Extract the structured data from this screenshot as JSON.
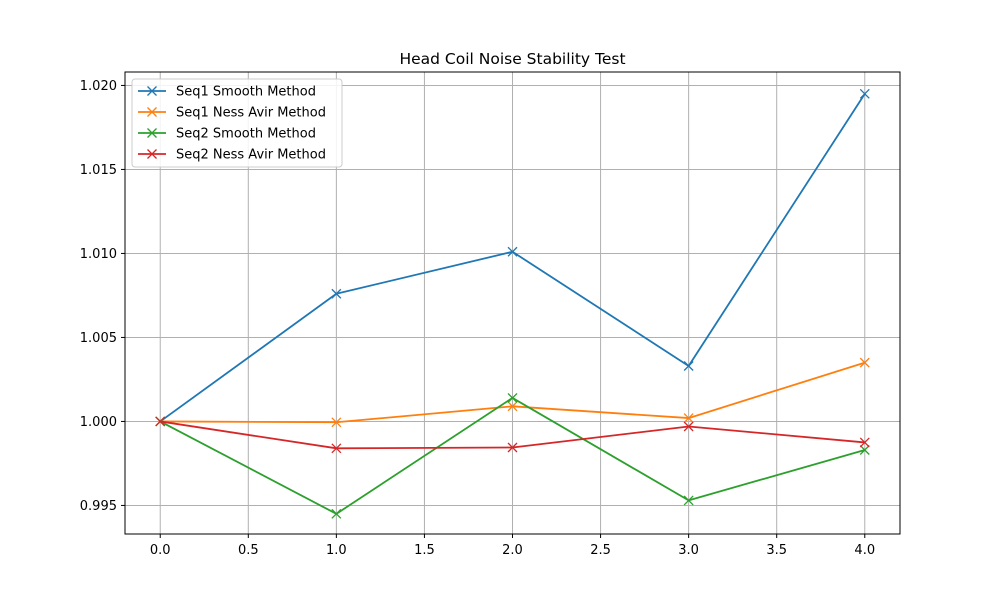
{
  "chart_data": {
    "type": "line",
    "title": "Head Coil Noise Stability Test",
    "xlabel": "",
    "ylabel": "",
    "x": [
      0,
      1,
      2,
      3,
      4
    ],
    "xlim": [
      -0.2,
      4.2
    ],
    "ylim": [
      0.9933,
      1.0208
    ],
    "xticks": [
      0.0,
      0.5,
      1.0,
      1.5,
      2.0,
      2.5,
      3.0,
      3.5,
      4.0
    ],
    "xtick_labels": [
      "0.0",
      "0.5",
      "1.0",
      "1.5",
      "2.0",
      "2.5",
      "3.0",
      "3.5",
      "4.0"
    ],
    "yticks": [
      0.995,
      1.0,
      1.005,
      1.01,
      1.015,
      1.02
    ],
    "ytick_labels": [
      "0.995",
      "1.000",
      "1.005",
      "1.010",
      "1.015",
      "1.020"
    ],
    "grid": true,
    "legend_position": "upper-left",
    "marker": "x",
    "series": [
      {
        "name": "Seq1 Smooth Method",
        "color": "#1f77b4",
        "values": [
          1.0,
          1.0076,
          1.0101,
          1.0033,
          1.0195
        ]
      },
      {
        "name": "Seq1 Ness Avir Method",
        "color": "#ff7f0e",
        "values": [
          1.0,
          0.99995,
          1.0009,
          1.0002,
          1.0035
        ]
      },
      {
        "name": "Seq2 Smooth Method",
        "color": "#2ca02c",
        "values": [
          1.0,
          0.9945,
          1.0014,
          0.9953,
          0.9983
        ]
      },
      {
        "name": "Seq2 Ness Avir Method",
        "color": "#d62728",
        "values": [
          1.0,
          0.9984,
          0.99845,
          0.9997,
          0.99875
        ]
      }
    ]
  }
}
